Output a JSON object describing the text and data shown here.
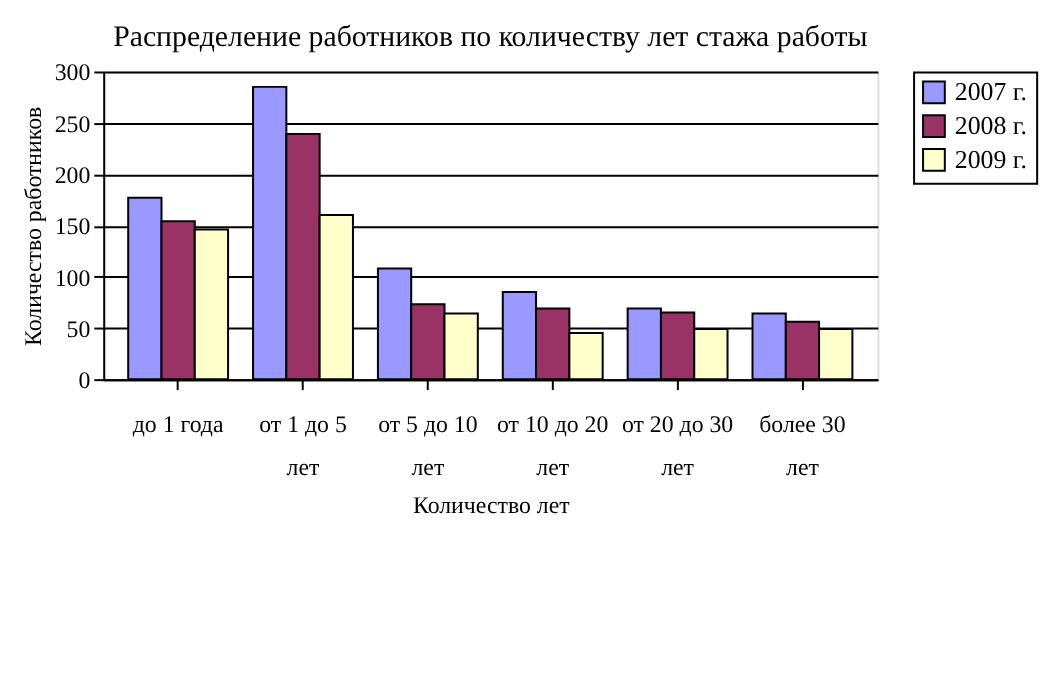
{
  "chart_data": {
    "type": "bar",
    "title": "Распределение работников по количеству лет стажа работы",
    "xlabel": "Количество лет",
    "ylabel": "Количество работников",
    "categories": [
      "до 1 года",
      "от 1 до 5 лет",
      "от 5 до 10 лет",
      "от 10 до 20 лет",
      "от 20 до 30 лет",
      "более 30 лет"
    ],
    "series": [
      {
        "name": "2007 г.",
        "color": "#9999ff",
        "values": [
          177,
          285,
          108,
          85,
          69,
          64
        ]
      },
      {
        "name": "2008 г.",
        "color": "#993366",
        "values": [
          154,
          239,
          73,
          69,
          65,
          56
        ]
      },
      {
        "name": "2009 г.",
        "color": "#ffffcc",
        "values": [
          146,
          160,
          64,
          45,
          49,
          49
        ]
      }
    ],
    "ylim": [
      0,
      300
    ],
    "yticks": [
      0,
      50,
      100,
      150,
      200,
      250,
      300
    ],
    "grid": "y",
    "legend": "right"
  }
}
